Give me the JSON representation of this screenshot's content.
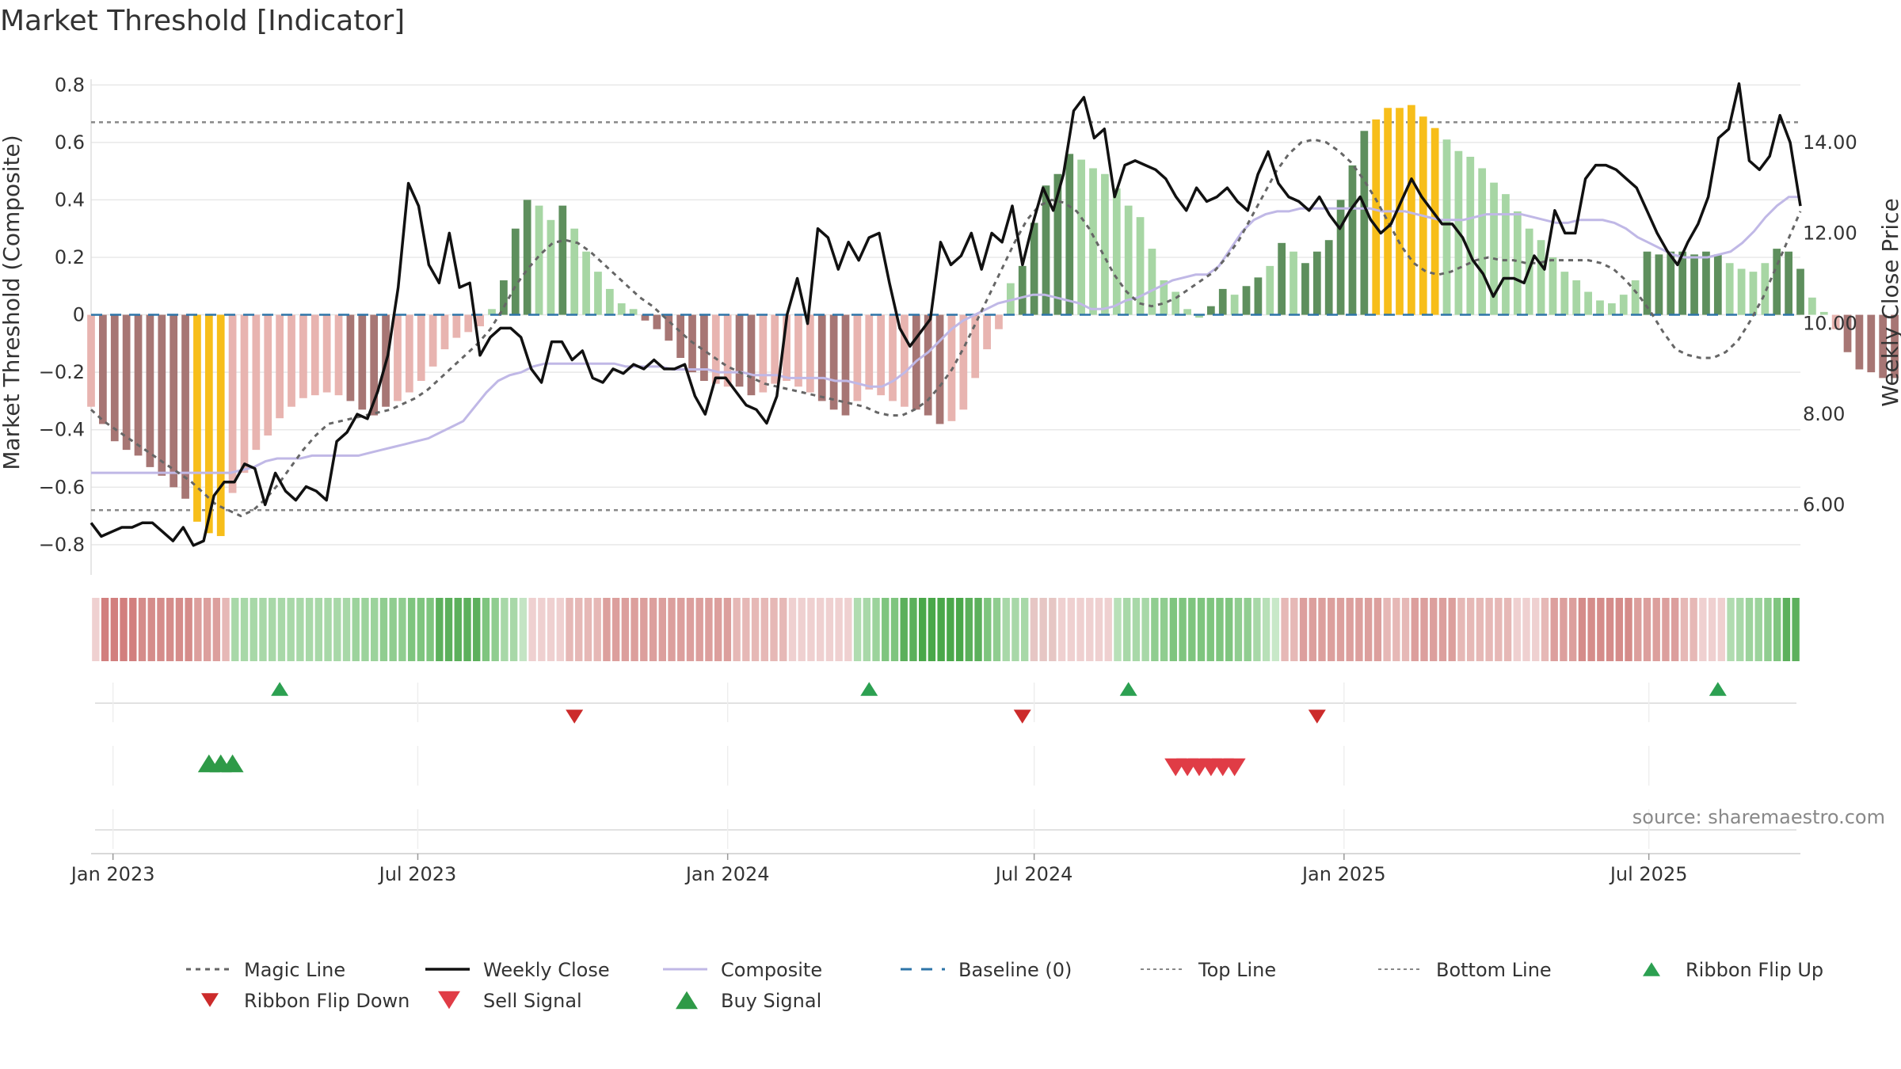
{
  "chart_data": {
    "type": "bar",
    "title": "Market Threshold [Indicator]",
    "ylabel": "Market Threshold (Composite)",
    "y2label": "Weekly Close Price",
    "source": "source: sharemaestro.com",
    "ylim": [
      -0.85,
      0.82
    ],
    "y2lim": [
      4.8,
      15.4
    ],
    "x_start": "2022-12-19",
    "x_end": "2025-09-29",
    "y_ticks": [
      0.8,
      0.6,
      0.4,
      0.2,
      0,
      -0.2,
      -0.4,
      -0.6,
      -0.8
    ],
    "y_tick_labels": [
      "0.8",
      "0.6",
      "0.4",
      "0.2",
      "0",
      "−0.2",
      "−0.4",
      "−0.6",
      "−0.8"
    ],
    "y2_ticks": [
      14,
      12,
      10,
      8,
      6
    ],
    "y2_tick_labels": [
      "14.00",
      "12.00",
      "10.00",
      "8.00",
      "6.00"
    ],
    "x_ticks": [
      "2023-01-01",
      "2023-07-01",
      "2024-01-01",
      "2024-07-01",
      "2025-01-01",
      "2025-07-01"
    ],
    "x_tick_labels": [
      "Jan 2023",
      "Jul 2023",
      "Jan 2024",
      "Jul 2024",
      "Jan 2025",
      "Jul 2025"
    ],
    "top_line": 0.67,
    "bottom_line": -0.68,
    "composite_bars": [
      -0.32,
      -0.38,
      -0.44,
      -0.47,
      -0.49,
      -0.53,
      -0.56,
      -0.6,
      -0.64,
      -0.72,
      -0.76,
      -0.77,
      -0.62,
      -0.55,
      -0.47,
      -0.42,
      -0.36,
      -0.32,
      -0.29,
      -0.28,
      -0.27,
      -0.28,
      -0.3,
      -0.33,
      -0.35,
      -0.32,
      -0.3,
      -0.27,
      -0.23,
      -0.18,
      -0.12,
      -0.08,
      -0.06,
      -0.04,
      0.02,
      0.12,
      0.3,
      0.4,
      0.38,
      0.33,
      0.38,
      0.3,
      0.22,
      0.15,
      0.09,
      0.04,
      0.02,
      -0.02,
      -0.05,
      -0.09,
      -0.15,
      -0.2,
      -0.23,
      -0.24,
      -0.25,
      -0.25,
      -0.28,
      -0.27,
      -0.24,
      -0.23,
      -0.25,
      -0.27,
      -0.3,
      -0.33,
      -0.35,
      -0.3,
      -0.26,
      -0.28,
      -0.3,
      -0.32,
      -0.33,
      -0.35,
      -0.38,
      -0.37,
      -0.33,
      -0.22,
      -0.12,
      -0.05,
      0.11,
      0.17,
      0.32,
      0.45,
      0.49,
      0.56,
      0.54,
      0.51,
      0.49,
      0.44,
      0.38,
      0.34,
      0.23,
      0.12,
      0.08,
      0.02,
      -0.01,
      0.03,
      0.09,
      0.07,
      0.1,
      0.13,
      0.17,
      0.25,
      0.22,
      0.18,
      0.22,
      0.26,
      0.4,
      0.52,
      0.64,
      0.68,
      0.72,
      0.72,
      0.73,
      0.69,
      0.65,
      0.61,
      0.57,
      0.55,
      0.51,
      0.46,
      0.42,
      0.36,
      0.3,
      0.26,
      0.2,
      0.15,
      0.12,
      0.08,
      0.05,
      0.04,
      0.07,
      0.12,
      0.22,
      0.21,
      0.22,
      0.22,
      0.21,
      0.22,
      0.21,
      0.18,
      0.16,
      0.15,
      0.18,
      0.23,
      0.22,
      0.16,
      0.06,
      0.01,
      -0.05,
      -0.13,
      -0.19,
      -0.2,
      -0.22,
      -0.22,
      -0.18,
      -0.12,
      -0.06,
      -0.04,
      0.14,
      0.25,
      0.31,
      0.42,
      0.52,
      0.6,
      0.58
    ],
    "bar_colors": [
      "#e8b4b0",
      "#a77674",
      "#a77674",
      "#a77674",
      "#a77674",
      "#a77674",
      "#a77674",
      "#a77674",
      "#a77674",
      "#f7be1a",
      "#f7be1a",
      "#f7be1a",
      "#e8b4b0",
      "#e8b4b0",
      "#e8b4b0",
      "#e8b4b0",
      "#e8b4b0",
      "#e8b4b0",
      "#e8b4b0",
      "#e8b4b0",
      "#e8b4b0",
      "#e8b4b0",
      "#a77674",
      "#a77674",
      "#a77674",
      "#a77674",
      "#e8b4b0",
      "#e8b4b0",
      "#e8b4b0",
      "#e8b4b0",
      "#e8b4b0",
      "#e8b4b0",
      "#e8b4b0",
      "#e8b4b0",
      "#a7d6a4",
      "#5e8f5d",
      "#5e8f5d",
      "#5e8f5d",
      "#a7d6a4",
      "#a7d6a4",
      "#5e8f5d",
      "#a7d6a4",
      "#a7d6a4",
      "#a7d6a4",
      "#a7d6a4",
      "#a7d6a4",
      "#a7d6a4",
      "#a77674",
      "#a77674",
      "#a77674",
      "#a77674",
      "#a77674",
      "#a77674",
      "#e8b4b0",
      "#e8b4b0",
      "#a77674",
      "#a77674",
      "#e8b4b0",
      "#e8b4b0",
      "#e8b4b0",
      "#e8b4b0",
      "#e8b4b0",
      "#a77674",
      "#a77674",
      "#a77674",
      "#e8b4b0",
      "#e8b4b0",
      "#e8b4b0",
      "#e8b4b0",
      "#e8b4b0",
      "#a77674",
      "#a77674",
      "#a77674",
      "#e8b4b0",
      "#e8b4b0",
      "#e8b4b0",
      "#e8b4b0",
      "#e8b4b0",
      "#a7d6a4",
      "#5e8f5d",
      "#5e8f5d",
      "#5e8f5d",
      "#5e8f5d",
      "#5e8f5d",
      "#a7d6a4",
      "#a7d6a4",
      "#a7d6a4",
      "#a7d6a4",
      "#a7d6a4",
      "#a7d6a4",
      "#a7d6a4",
      "#a7d6a4",
      "#a7d6a4",
      "#a7d6a4",
      "#a7d6a4",
      "#5e8f5d",
      "#5e8f5d",
      "#a7d6a4",
      "#5e8f5d",
      "#5e8f5d",
      "#a7d6a4",
      "#5e8f5d",
      "#a7d6a4",
      "#5e8f5d",
      "#5e8f5d",
      "#5e8f5d",
      "#5e8f5d",
      "#5e8f5d",
      "#5e8f5d",
      "#f7be1a",
      "#f7be1a",
      "#f7be1a",
      "#f7be1a",
      "#f7be1a",
      "#f7be1a",
      "#a7d6a4",
      "#a7d6a4",
      "#a7d6a4",
      "#a7d6a4",
      "#a7d6a4",
      "#a7d6a4",
      "#a7d6a4",
      "#a7d6a4",
      "#a7d6a4",
      "#a7d6a4",
      "#a7d6a4",
      "#a7d6a4",
      "#a7d6a4",
      "#a7d6a4",
      "#a7d6a4",
      "#a7d6a4",
      "#a7d6a4",
      "#5e8f5d",
      "#5e8f5d",
      "#5e8f5d",
      "#5e8f5d",
      "#5e8f5d",
      "#5e8f5d",
      "#5e8f5d",
      "#a7d6a4",
      "#a7d6a4",
      "#a7d6a4",
      "#a7d6a4",
      "#5e8f5d",
      "#5e8f5d",
      "#5e8f5d",
      "#a7d6a4",
      "#a7d6a4",
      "#e8b4b0",
      "#a77674",
      "#a77674",
      "#a77674",
      "#a77674",
      "#a77674",
      "#a77674",
      "#e8b4b0",
      "#e8b4b0",
      "#e8b4b0",
      "#e8b4b0",
      "#a7d6a4",
      "#5e8f5d",
      "#5e8f5d",
      "#5e8f5d",
      "#5e8f5d",
      "#5e8f5d",
      "#a7d6a4"
    ],
    "weekly_close": [
      5.6,
      5.3,
      5.4,
      5.5,
      5.5,
      5.6,
      5.6,
      5.4,
      5.2,
      5.5,
      5.1,
      5.2,
      6.2,
      6.5,
      6.5,
      6.9,
      6.8,
      6.0,
      6.7,
      6.3,
      6.1,
      6.4,
      6.3,
      6.1,
      7.4,
      7.6,
      8.0,
      7.9,
      8.5,
      9.3,
      10.8,
      13.1,
      12.6,
      11.3,
      10.9,
      12.0,
      10.8,
      10.9,
      9.3,
      9.7,
      9.9,
      9.9,
      9.7,
      9.0,
      8.7,
      9.6,
      9.6,
      9.2,
      9.4,
      8.8,
      8.7,
      9.0,
      8.9,
      9.1,
      9.0,
      9.2,
      9.0,
      9.0,
      9.1,
      8.4,
      8.0,
      8.8,
      8.8,
      8.5,
      8.2,
      8.1,
      7.8,
      8.4,
      10.2,
      11.0,
      10.0,
      12.1,
      11.9,
      11.2,
      11.8,
      11.4,
      11.9,
      12.0,
      10.9,
      9.9,
      9.5,
      9.8,
      10.1,
      11.8,
      11.3,
      11.5,
      12.0,
      11.2,
      12.0,
      11.8,
      12.6,
      11.3,
      12.2,
      13.0,
      12.5,
      13.3,
      14.7,
      15.0,
      14.1,
      14.3,
      12.8,
      13.5,
      13.6,
      13.5,
      13.4,
      13.2,
      12.8,
      12.5,
      13.0,
      12.7,
      12.8,
      13.0,
      12.7,
      12.5,
      13.3,
      13.8,
      13.1,
      12.8,
      12.7,
      12.5,
      12.8,
      12.4,
      12.1,
      12.5,
      12.8,
      12.3,
      12.0,
      12.2,
      12.7,
      13.2,
      12.8,
      12.5,
      12.2,
      12.2,
      11.9,
      11.4,
      11.1,
      10.6,
      11.0,
      11.0,
      10.9,
      11.5,
      11.2,
      12.5,
      12.0,
      12.0,
      13.2,
      13.5,
      13.5,
      13.4,
      13.2,
      13.0,
      12.5,
      12.0,
      11.6,
      11.3,
      11.8,
      12.2,
      12.8,
      14.1,
      14.3,
      15.3,
      13.6,
      13.4,
      13.7,
      14.6,
      14.0,
      12.6
    ],
    "composite_line": [
      -0.55,
      -0.55,
      -0.55,
      -0.55,
      -0.55,
      -0.55,
      -0.55,
      -0.55,
      -0.55,
      -0.55,
      -0.55,
      -0.55,
      -0.55,
      -0.54,
      -0.53,
      -0.51,
      -0.5,
      -0.5,
      -0.5,
      -0.49,
      -0.49,
      -0.49,
      -0.49,
      -0.49,
      -0.48,
      -0.47,
      -0.46,
      -0.45,
      -0.44,
      -0.43,
      -0.41,
      -0.39,
      -0.37,
      -0.32,
      -0.27,
      -0.23,
      -0.21,
      -0.2,
      -0.18,
      -0.17,
      -0.17,
      -0.17,
      -0.17,
      -0.17,
      -0.17,
      -0.17,
      -0.18,
      -0.18,
      -0.18,
      -0.18,
      -0.19,
      -0.19,
      -0.19,
      -0.19,
      -0.2,
      -0.2,
      -0.2,
      -0.21,
      -0.21,
      -0.21,
      -0.22,
      -0.22,
      -0.22,
      -0.22,
      -0.23,
      -0.23,
      -0.24,
      -0.25,
      -0.25,
      -0.23,
      -0.2,
      -0.16,
      -0.13,
      -0.09,
      -0.05,
      -0.02,
      0.0,
      0.02,
      0.04,
      0.05,
      0.06,
      0.07,
      0.07,
      0.06,
      0.05,
      0.04,
      0.02,
      0.02,
      0.03,
      0.05,
      0.06,
      0.08,
      0.1,
      0.12,
      0.13,
      0.14,
      0.14,
      0.17,
      0.23,
      0.29,
      0.33,
      0.35,
      0.36,
      0.36,
      0.37,
      0.37,
      0.37,
      0.37,
      0.37,
      0.37,
      0.37,
      0.36,
      0.36,
      0.36,
      0.35,
      0.34,
      0.33,
      0.33,
      0.33,
      0.34,
      0.35,
      0.35,
      0.35,
      0.35,
      0.34,
      0.33,
      0.32,
      0.32,
      0.33,
      0.33,
      0.33,
      0.32,
      0.3,
      0.27,
      0.25,
      0.23,
      0.21,
      0.2,
      0.2,
      0.2,
      0.21,
      0.22,
      0.25,
      0.29,
      0.34,
      0.38,
      0.41,
      0.41
    ],
    "magic_line": [
      -0.33,
      -0.37,
      -0.4,
      -0.43,
      -0.46,
      -0.49,
      -0.52,
      -0.55,
      -0.58,
      -0.62,
      -0.66,
      -0.68,
      -0.7,
      -0.68,
      -0.64,
      -0.59,
      -0.53,
      -0.47,
      -0.42,
      -0.38,
      -0.37,
      -0.36,
      -0.35,
      -0.34,
      -0.33,
      -0.31,
      -0.29,
      -0.26,
      -0.22,
      -0.18,
      -0.14,
      -0.1,
      -0.05,
      0.02,
      0.1,
      0.16,
      0.21,
      0.25,
      0.26,
      0.25,
      0.22,
      0.18,
      0.14,
      0.1,
      0.06,
      0.03,
      -0.01,
      -0.05,
      -0.09,
      -0.12,
      -0.15,
      -0.18,
      -0.2,
      -0.22,
      -0.24,
      -0.25,
      -0.26,
      -0.27,
      -0.28,
      -0.29,
      -0.3,
      -0.31,
      -0.32,
      -0.34,
      -0.35,
      -0.35,
      -0.33,
      -0.3,
      -0.25,
      -0.19,
      -0.11,
      -0.02,
      0.07,
      0.16,
      0.25,
      0.33,
      0.38,
      0.4,
      0.39,
      0.36,
      0.3,
      0.22,
      0.14,
      0.08,
      0.04,
      0.03,
      0.04,
      0.06,
      0.09,
      0.12,
      0.15,
      0.2,
      0.26,
      0.34,
      0.42,
      0.5,
      0.56,
      0.6,
      0.61,
      0.6,
      0.57,
      0.53,
      0.47,
      0.4,
      0.32,
      0.24,
      0.18,
      0.15,
      0.14,
      0.15,
      0.17,
      0.19,
      0.2,
      0.19,
      0.19,
      0.18,
      0.18,
      0.19,
      0.19,
      0.19,
      0.19,
      0.18,
      0.16,
      0.12,
      0.07,
      0.01,
      -0.06,
      -0.12,
      -0.14,
      -0.15,
      -0.15,
      -0.13,
      -0.09,
      -0.02,
      0.06,
      0.16,
      0.26,
      0.36
    ],
    "ribbon_colors": [
      "#efd0d0",
      "#d27f7e",
      "#d27f7e",
      "#d27f7e",
      "#d27f7e",
      "#d58c8a",
      "#d58c8a",
      "#d58c8a",
      "#d58c8a",
      "#d58c8a",
      "#d58c8a",
      "#dc9f9d",
      "#dc9f9d",
      "#dc9f9d",
      "#e6b8b6",
      "#a8d8a8",
      "#a8d8a8",
      "#a8d8a8",
      "#a8d8a8",
      "#a8d8a8",
      "#a8d8a8",
      "#a8d8a8",
      "#a8d8a8",
      "#a8d8a8",
      "#a8d8a8",
      "#a8d8a8",
      "#a8d8a8",
      "#a8d8a8",
      "#9cd39c",
      "#9cd39c",
      "#9cd39c",
      "#90cd90",
      "#90cd90",
      "#90cd90",
      "#7fc57f",
      "#7fc57f",
      "#7fc57f",
      "#5cb05c",
      "#5cb05c",
      "#5cb05c",
      "#5cb05c",
      "#5cb05c",
      "#7fc57f",
      "#90cd90",
      "#a8d8a8",
      "#a8d8a8",
      "#c4e4c4",
      "#efd0d0",
      "#efd0d0",
      "#efd0d0",
      "#efd0d0",
      "#e6b8b6",
      "#e6b8b6",
      "#e6b8b6",
      "#e6b8b6",
      "#dc9f9d",
      "#dc9f9d",
      "#dc9f9d",
      "#dc9f9d",
      "#dc9f9d",
      "#dc9f9d",
      "#dc9f9d",
      "#dc9f9d",
      "#dc9f9d",
      "#dc9f9d",
      "#dc9f9d",
      "#dc9f9d",
      "#dc9f9d",
      "#dc9f9d",
      "#e6b8b6",
      "#e6b8b6",
      "#e6b8b6",
      "#e6b8b6",
      "#e6b8b6",
      "#e6b8b6",
      "#efd0d0",
      "#efd0d0",
      "#efd0d0",
      "#efd0d0",
      "#efd0d0",
      "#efd0d0",
      "#efd0d0",
      "#b0dcb0",
      "#a8d8a8",
      "#9cd39c",
      "#7fc57f",
      "#7fc57f",
      "#5cb05c",
      "#5cb05c",
      "#4aa84a",
      "#4aa84a",
      "#4aa84a",
      "#4aa84a",
      "#4aa84a",
      "#5cb05c",
      "#5cb05c",
      "#7fc57f",
      "#90cd90",
      "#a8d8a8",
      "#a8d8a8",
      "#a8d8a8",
      "#e6c6c4",
      "#e6c6c4",
      "#e6c6c4",
      "#efd0d0",
      "#efd0d0",
      "#efd0d0",
      "#efd0d0",
      "#efd0d0",
      "#efd0d0",
      "#b8e0b8",
      "#a8d8a8",
      "#a8d8a8",
      "#a8d8a8",
      "#90cd90",
      "#90cd90",
      "#7fc57f",
      "#7fc57f",
      "#7fc57f",
      "#7fc57f",
      "#7fc57f",
      "#7fc57f",
      "#7fc57f",
      "#90cd90",
      "#90cd90",
      "#a8d8a8",
      "#b8e0b8",
      "#c8e8c8",
      "#e6b8b6",
      "#e6b8b6",
      "#dc9f9d",
      "#dc9f9d",
      "#dc9f9d",
      "#dc9f9d",
      "#dc9f9d",
      "#dc9f9d",
      "#dc9f9d",
      "#dc9f9d",
      "#dc9f9d",
      "#e6b8b6",
      "#e6b8b6",
      "#e6b8b6",
      "#dc9f9d",
      "#dc9f9d",
      "#dc9f9d",
      "#dc9f9d",
      "#dc9f9d",
      "#e6b8b6",
      "#e6b8b6",
      "#e6b8b6",
      "#e6b8b6",
      "#e6b8b6",
      "#e6b8b6",
      "#efd0d0",
      "#efd0d0",
      "#efd0d0",
      "#e6b8b6",
      "#dc9f9d",
      "#dc9f9d",
      "#dc9f9d",
      "#d58c8a",
      "#d58c8a",
      "#d58c8a",
      "#d58c8a",
      "#d58c8a",
      "#d58c8a",
      "#dc9f9d",
      "#dc9f9d",
      "#dc9f9d",
      "#dc9f9d",
      "#dc9f9d",
      "#e6b8b6",
      "#e6b8b6",
      "#efd0d0",
      "#efd0d0",
      "#efd0d0",
      "#b0dcb0",
      "#a8d8a8",
      "#9cd39c",
      "#9cd39c",
      "#90cd90",
      "#7fc57f",
      "#5cb05c",
      "#5cb05c"
    ],
    "ribbon_flip_up": [
      "2023-04-10",
      "2024-03-25",
      "2024-08-26",
      "2025-08-11"
    ],
    "ribbon_flip_down": [
      "2023-10-02",
      "2024-06-24",
      "2024-12-16"
    ],
    "buy_signals": [
      "2023-02-27",
      "2023-03-06",
      "2023-03-13"
    ],
    "sell_signals": [
      "2024-09-23",
      "2024-09-30",
      "2024-10-07",
      "2024-10-14",
      "2024-10-21",
      "2024-10-28"
    ],
    "legend": [
      "Magic Line",
      "Weekly Close",
      "Composite",
      "Baseline (0)",
      "Top Line",
      "Bottom Line",
      "Ribbon Flip Up",
      "Ribbon Flip Down",
      "Sell Signal",
      "Buy Signal"
    ],
    "colors": {
      "magic_line": "#666666",
      "weekly_close": "#111111",
      "composite": "#c0b8e6",
      "baseline": "#2e75a8",
      "threshold": "#888888",
      "flip_up": "#2ca051",
      "flip_down": "#cc2b2b",
      "sell": "#e03c46",
      "buy": "#2e9a47"
    }
  }
}
